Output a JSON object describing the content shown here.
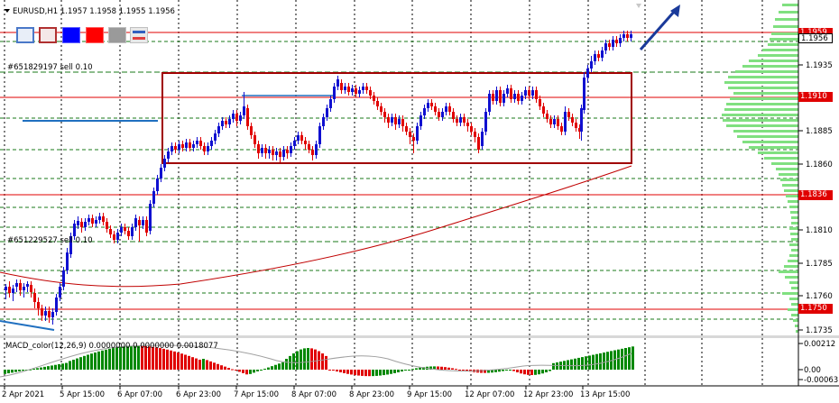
{
  "window": {
    "symbol_line": "EURUSD,H1  1.1957 1.1958 1.1955 1.1956"
  },
  "toolbar": {
    "buttons": [
      {
        "name": "frame-blue-button",
        "color": "#4a78c8"
      },
      {
        "name": "frame-red-button",
        "color": "#b03030"
      },
      {
        "name": "fill-blue-button",
        "color": "#0000ff"
      },
      {
        "name": "fill-red-button",
        "color": "#ff0000"
      },
      {
        "name": "fill-gray-button",
        "color": "#9a9a9a"
      },
      {
        "name": "lines-button",
        "color": "#3060c0"
      }
    ]
  },
  "orders": [
    {
      "label": "#651829197 sell 0.10"
    },
    {
      "label": "#651229527 sell 0.10"
    }
  ],
  "price_axis": {
    "ticks": [
      "1.1935",
      "1.1885",
      "1.1860",
      "1.1810",
      "1.1785",
      "1.1760",
      "1.1735"
    ],
    "tags": [
      {
        "value": "1.1959",
        "style": "red"
      },
      {
        "value": "1.1956",
        "style": "white"
      },
      {
        "value": "1.1910",
        "style": "red"
      },
      {
        "value": "1.1836",
        "style": "red"
      },
      {
        "value": "1.1750",
        "style": "red"
      }
    ]
  },
  "time_axis": {
    "labels": [
      "2 Apr 2021",
      "5 Apr 15:00",
      "6 Apr 07:00",
      "6 Apr 23:00",
      "7 Apr 15:00",
      "8 Apr 07:00",
      "8 Apr 23:00",
      "9 Apr 15:00",
      "12 Apr 07:00",
      "12 Apr 23:00",
      "13 Apr 15:00"
    ]
  },
  "indicator": {
    "label": "MACD_color(12,26,9) 0.0000000 0.0000000 0.0018077",
    "ticks": [
      "0.00212",
      "0.00",
      "-0.00063"
    ]
  },
  "colors": {
    "bull": "#1010d0",
    "bear": "#e00000",
    "grid": "#000000",
    "level_green": "#1a7a1a",
    "level_red": "#e00000",
    "box": "#a00000",
    "ma": "#c00000",
    "volume_profile": "#80e080",
    "macd_up": "#008800",
    "macd_down": "#e00000",
    "arrow": "#1a3a9a"
  }
}
